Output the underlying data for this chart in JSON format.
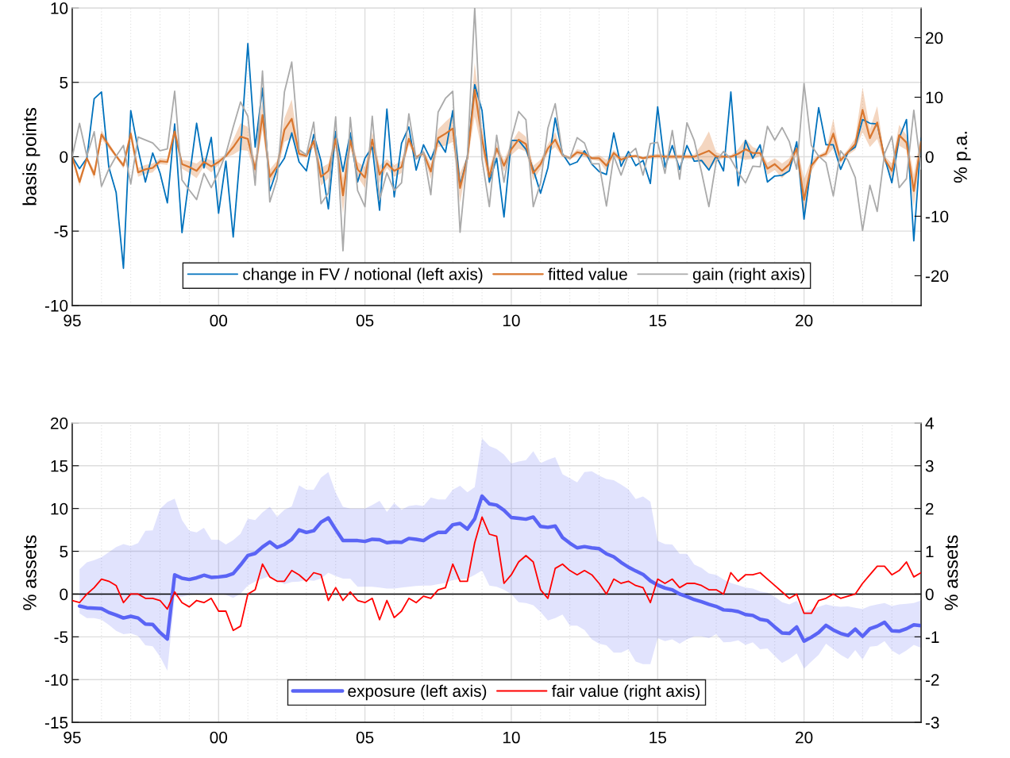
{
  "chart_data": [
    {
      "type": "line",
      "x": [
        1995,
        1995.25,
        1995.5,
        1995.75,
        1996,
        1996.25,
        1996.5,
        1996.75,
        1997,
        1997.25,
        1997.5,
        1997.75,
        1998,
        1998.25,
        1998.5,
        1998.75,
        1999,
        1999.25,
        1999.5,
        1999.75,
        2000,
        2000.25,
        2000.5,
        2000.75,
        2001,
        2001.25,
        2001.5,
        2001.75,
        2002,
        2002.25,
        2002.5,
        2002.75,
        2003,
        2003.25,
        2003.5,
        2003.75,
        2004,
        2004.25,
        2004.5,
        2004.75,
        2005,
        2005.25,
        2005.5,
        2005.75,
        2006,
        2006.25,
        2006.5,
        2006.75,
        2007,
        2007.25,
        2007.5,
        2007.75,
        2008,
        2008.25,
        2008.5,
        2008.75,
        2009,
        2009.25,
        2009.5,
        2009.75,
        2010,
        2010.25,
        2010.5,
        2010.75,
        2011,
        2011.25,
        2011.5,
        2011.75,
        2012,
        2012.25,
        2012.5,
        2012.75,
        2013,
        2013.25,
        2013.5,
        2013.75,
        2014,
        2014.25,
        2014.5,
        2014.75,
        2015,
        2015.25,
        2015.5,
        2015.75,
        2016,
        2016.25,
        2016.5,
        2016.75,
        2017,
        2017.25,
        2017.5,
        2017.75,
        2018,
        2018.25,
        2018.5,
        2018.75,
        2019,
        2019.25,
        2019.5,
        2019.75,
        2020,
        2020.25,
        2020.5,
        2020.75,
        2021,
        2021.25,
        2021.5,
        2021.75,
        2022,
        2022.25,
        2022.5,
        2022.75,
        2023,
        2023.25,
        2023.5,
        2023.75,
        2024
      ],
      "xlim": [
        1995,
        2024
      ],
      "xticks": [
        {
          "value": 1995,
          "label": "95"
        },
        {
          "value": 1996,
          "label": null
        },
        {
          "value": 1997,
          "label": null
        },
        {
          "value": 1998,
          "label": null
        },
        {
          "value": 1999,
          "label": null
        },
        {
          "value": 2000,
          "label": "00"
        },
        {
          "value": 2001,
          "label": null
        },
        {
          "value": 2002,
          "label": null
        },
        {
          "value": 2003,
          "label": null
        },
        {
          "value": 2004,
          "label": null
        },
        {
          "value": 2005,
          "label": "05"
        },
        {
          "value": 2006,
          "label": null
        },
        {
          "value": 2007,
          "label": null
        },
        {
          "value": 2008,
          "label": null
        },
        {
          "value": 2009,
          "label": null
        },
        {
          "value": 2010,
          "label": "10"
        },
        {
          "value": 2011,
          "label": null
        },
        {
          "value": 2012,
          "label": null
        },
        {
          "value": 2013,
          "label": null
        },
        {
          "value": 2014,
          "label": null
        },
        {
          "value": 2015,
          "label": "15"
        },
        {
          "value": 2016,
          "label": null
        },
        {
          "value": 2017,
          "label": null
        },
        {
          "value": 2018,
          "label": null
        },
        {
          "value": 2019,
          "label": null
        },
        {
          "value": 2020,
          "label": "20"
        },
        {
          "value": 2021,
          "label": null
        },
        {
          "value": 2022,
          "label": null
        },
        {
          "value": 2023,
          "label": null
        }
      ],
      "ylim": [
        -10,
        10
      ],
      "yticks": [
        -10,
        -5,
        0,
        5,
        10
      ],
      "y2lim": [
        -25,
        25
      ],
      "y2ticks": [
        -20,
        -10,
        0,
        10,
        20
      ],
      "ylabel": "basis points",
      "y2label": "% p.a.",
      "grid": true,
      "legend": "bottom",
      "series": [
        {
          "name": "change in FV / notional (left axis)",
          "color": "#0072bd",
          "values": [
            0,
            -0.8,
            -0.1,
            3.9,
            4.35,
            -0.7,
            -2.4,
            -7.5,
            3.1,
            0.5,
            -1.7,
            0.25,
            -1.1,
            -3.1,
            2.2,
            -5.1,
            -1.4,
            2.25,
            -0.75,
            1.3,
            -3.8,
            -0.3,
            -5.4,
            0.5,
            7.6,
            0.65,
            4.6,
            -2.3,
            -0.85,
            -0.1,
            1.6,
            -0.35,
            -0.95,
            1.5,
            -0.3,
            -3.5,
            1.7,
            -1.0,
            1.6,
            -1.7,
            -0.1,
            0.65,
            -3.6,
            3.2,
            -2.7,
            0.9,
            2.0,
            -0.9,
            0.8,
            -0.2,
            1.1,
            0.3,
            3.1,
            -1.95,
            0,
            4.85,
            3.1,
            -1.7,
            -0.1,
            -4.05,
            1.1,
            1.1,
            0.5,
            -0.85,
            -2.45,
            -0.75,
            2.6,
            0.2,
            -0.55,
            -0.35,
            0.4,
            -0.5,
            -1.0,
            -1.2,
            1.6,
            -0.65,
            0.35,
            -0.6,
            -0.25,
            -1.8,
            3.35,
            -0.7,
            0.75,
            -0.85,
            0.75,
            -0.3,
            -0.25,
            -0.9,
            0.05,
            -0.95,
            4.35,
            -1.95,
            1.1,
            -0.1,
            0.8,
            -1.7,
            -1.3,
            -1.25,
            -0.95,
            1.0,
            -4.2,
            -0.5,
            3.3,
            0.8,
            0.8,
            -0.85,
            0.3,
            0.65,
            2.5,
            2.25,
            2.2,
            -0.05,
            -1.75,
            1.25,
            2.5,
            -5.65,
            1.25
          ]
        },
        {
          "name": "fitted value",
          "color": "#d9772f",
          "values": [
            0,
            -1.7,
            -0.1,
            -1.2,
            1.5,
            0.75,
            0.05,
            -0.6,
            1.55,
            -1.05,
            -0.85,
            -0.75,
            -0.3,
            -0.35,
            1.7,
            -0.5,
            -0.7,
            -0.95,
            -0.35,
            -0.65,
            -0.35,
            0.05,
            0.65,
            1.35,
            1.2,
            -0.85,
            2.8,
            -1.35,
            -0.65,
            1.8,
            2.55,
            0.2,
            0.05,
            1.05,
            -1.35,
            -0.95,
            1.2,
            -2.6,
            1.1,
            -0.85,
            -1.4,
            1.15,
            -1.2,
            -0.45,
            -0.95,
            -0.7,
            1.2,
            -0.05,
            0.25,
            -1.0,
            1.25,
            1.55,
            1.9,
            -2.1,
            -0.1,
            4.5,
            1.2,
            -1.35,
            0.55,
            -0.6,
            0.5,
            1.15,
            0.85,
            -1.1,
            -0.5,
            0.55,
            1.15,
            0.1,
            -0.1,
            0.3,
            0.2,
            -0.1,
            -0.1,
            -0.6,
            0.25,
            -0.2,
            0,
            0.05,
            -0.1,
            0,
            0.05,
            0,
            0,
            0,
            0,
            0,
            0.2,
            0.4,
            0,
            0,
            0,
            0.2,
            0.5,
            0.25,
            0.25,
            -0.8,
            -0.5,
            -0.95,
            -0.5,
            0.55,
            -2.9,
            -0.6,
            0,
            0.2,
            1.55,
            -0.25,
            0.3,
            0.85,
            3.15,
            1.25,
            2.3,
            -0.15,
            -0.95,
            1.45,
            0.95,
            -2.3,
            1.0
          ],
          "upper": [
            0.1,
            -1.4,
            0,
            -0.9,
            1.8,
            0.95,
            0.15,
            -0.4,
            1.95,
            -0.75,
            -0.55,
            -0.45,
            -0.1,
            -0.15,
            2.1,
            -0.2,
            -0.3,
            -0.45,
            -0.05,
            -0.25,
            -0.15,
            0.15,
            1.15,
            2.25,
            2.0,
            -0.45,
            3.8,
            -0.85,
            -0.25,
            2.6,
            3.85,
            0.4,
            0.15,
            1.45,
            -0.75,
            -0.45,
            1.7,
            -1.4,
            1.6,
            -0.35,
            -0.7,
            1.65,
            -0.6,
            -0.15,
            -0.55,
            -0.3,
            1.6,
            0.05,
            0.45,
            -0.5,
            1.85,
            2.35,
            2.8,
            -1.1,
            0.1,
            6.3,
            2.0,
            -0.75,
            0.85,
            -0.2,
            0.9,
            1.75,
            1.35,
            -0.6,
            -0.2,
            0.85,
            1.65,
            0.2,
            0,
            0.5,
            0.4,
            0,
            0.1,
            -0.2,
            0.45,
            0,
            0.1,
            0.15,
            0,
            0.15,
            0.2,
            0.15,
            0.15,
            0.15,
            0.15,
            0.15,
            0.8,
            1.7,
            0.3,
            0.1,
            0.1,
            0.5,
            1.2,
            0.65,
            0.45,
            -0.4,
            -0.1,
            -0.45,
            -0.1,
            0.95,
            -1.5,
            -0.2,
            0.1,
            0.4,
            2.55,
            -0.05,
            0.5,
            1.25,
            4.65,
            1.85,
            3.4,
            0.05,
            -0.45,
            2.15,
            1.45,
            -1.2,
            1.5
          ],
          "lower": [
            -0.1,
            -2.0,
            -0.2,
            -1.5,
            1.2,
            0.55,
            -0.05,
            -0.8,
            1.15,
            -1.35,
            -1.15,
            -1.05,
            -0.5,
            -0.55,
            1.3,
            -0.8,
            -1.1,
            -1.45,
            -0.65,
            -1.05,
            -0.55,
            -0.05,
            0.15,
            0.45,
            0.4,
            -1.25,
            1.8,
            -1.85,
            -1.05,
            1.0,
            1.25,
            0,
            -0.05,
            0.65,
            -1.95,
            -1.45,
            0.7,
            -3.8,
            0.6,
            -1.35,
            -2.1,
            0.65,
            -1.8,
            -0.75,
            -1.35,
            -1.1,
            0.8,
            -0.15,
            0.05,
            -1.5,
            0.65,
            0.75,
            1.0,
            -3.1,
            -0.3,
            2.7,
            0.4,
            -1.95,
            0.25,
            -1.0,
            0.1,
            0.55,
            0.35,
            -1.6,
            -0.8,
            0.25,
            0.65,
            0,
            -0.2,
            0.1,
            0,
            -0.2,
            -0.3,
            -1.0,
            0.05,
            -0.4,
            -0.1,
            -0.05,
            -0.2,
            -0.15,
            -0.1,
            -0.15,
            -0.15,
            -0.15,
            -0.15,
            -0.15,
            -0.4,
            -0.9,
            -0.3,
            -0.1,
            -0.1,
            -0.1,
            -0.2,
            -0.15,
            0.05,
            -1.2,
            -0.9,
            -1.45,
            -0.9,
            0.15,
            -4.3,
            -1.0,
            -0.1,
            0,
            0.55,
            -0.45,
            0.1,
            0.45,
            1.65,
            0.65,
            1.2,
            -0.35,
            -1.45,
            0.75,
            0.45,
            -3.4,
            0.5
          ]
        },
        {
          "name": "gain (right axis)",
          "color": "#aaaaaa",
          "axis": "y2",
          "values": [
            0,
            5.6,
            0.1,
            4.2,
            -5.0,
            -2.1,
            0.1,
            1.9,
            -4.6,
            3.3,
            2.8,
            2.3,
            1.0,
            1.3,
            11.0,
            -3.9,
            -5.6,
            -7.2,
            -2.8,
            -5.2,
            -2.6,
            0.5,
            5.0,
            9.2,
            6.8,
            -4.8,
            14.4,
            -7.6,
            -3.7,
            10.9,
            15.9,
            1.2,
            0.3,
            5.8,
            -7.9,
            -6.1,
            6.7,
            -15.8,
            6.6,
            -5.7,
            -8.4,
            6.8,
            -7.2,
            -2.7,
            -5.7,
            -4.4,
            7.2,
            -0.4,
            0.8,
            -6.4,
            7.5,
            9.8,
            11.0,
            -12.7,
            0.1,
            25,
            -0.4,
            -8.4,
            3.6,
            -4.3,
            3.0,
            7.6,
            6.2,
            -8.4,
            -4.4,
            4.8,
            8.9,
            0.3,
            -0.3,
            3.2,
            2.3,
            -1.2,
            -1.2,
            -8.3,
            0.1,
            -3.1,
            0.3,
            1.4,
            -3.1,
            2.2,
            2.4,
            -2.8,
            4.4,
            -3.8,
            5.7,
            2.7,
            -2.6,
            -8.4,
            -0.8,
            0.9,
            -0.4,
            -2.6,
            -4.4,
            -1.6,
            -1.7,
            5.1,
            2.8,
            4.9,
            2.5,
            -2.1,
            12.3,
            1.9,
            0.1,
            -1.0,
            -6.6,
            1.0,
            -0.6,
            -3.5,
            -12.4,
            -4.8,
            -9.2,
            0.5,
            3.4,
            -5.2,
            -3.7,
            7.8,
            -2.1
          ]
        }
      ]
    },
    {
      "type": "line",
      "x": [
        1995,
        1995.25,
        1995.5,
        1995.75,
        1996,
        1996.25,
        1996.5,
        1996.75,
        1997,
        1997.25,
        1997.5,
        1997.75,
        1998,
        1998.25,
        1998.5,
        1998.75,
        1999,
        1999.25,
        1999.5,
        1999.75,
        2000,
        2000.25,
        2000.5,
        2000.75,
        2001,
        2001.25,
        2001.5,
        2001.75,
        2002,
        2002.25,
        2002.5,
        2002.75,
        2003,
        2003.25,
        2003.5,
        2003.75,
        2004,
        2004.25,
        2004.5,
        2004.75,
        2005,
        2005.25,
        2005.5,
        2005.75,
        2006,
        2006.25,
        2006.5,
        2006.75,
        2007,
        2007.25,
        2007.5,
        2007.75,
        2008,
        2008.25,
        2008.5,
        2008.75,
        2009,
        2009.25,
        2009.5,
        2009.75,
        2010,
        2010.25,
        2010.5,
        2010.75,
        2011,
        2011.25,
        2011.5,
        2011.75,
        2012,
        2012.25,
        2012.5,
        2012.75,
        2013,
        2013.25,
        2013.5,
        2013.75,
        2014,
        2014.25,
        2014.5,
        2014.75,
        2015,
        2015.25,
        2015.5,
        2015.75,
        2016,
        2016.25,
        2016.5,
        2016.75,
        2017,
        2017.25,
        2017.5,
        2017.75,
        2018,
        2018.25,
        2018.5,
        2018.75,
        2019,
        2019.25,
        2019.5,
        2019.75,
        2020,
        2020.25,
        2020.5,
        2020.75,
        2021,
        2021.25,
        2021.5,
        2021.75,
        2022,
        2022.25,
        2022.5,
        2022.75,
        2023,
        2023.25,
        2023.5,
        2023.75,
        2024
      ],
      "xlim": [
        1995,
        2024
      ],
      "xticks": [
        {
          "value": 1995,
          "label": "95"
        },
        {
          "value": 1996,
          "label": null
        },
        {
          "value": 1997,
          "label": null
        },
        {
          "value": 1998,
          "label": null
        },
        {
          "value": 1999,
          "label": null
        },
        {
          "value": 2000,
          "label": "00"
        },
        {
          "value": 2001,
          "label": null
        },
        {
          "value": 2002,
          "label": null
        },
        {
          "value": 2003,
          "label": null
        },
        {
          "value": 2004,
          "label": null
        },
        {
          "value": 2005,
          "label": "05"
        },
        {
          "value": 2006,
          "label": null
        },
        {
          "value": 2007,
          "label": null
        },
        {
          "value": 2008,
          "label": null
        },
        {
          "value": 2009,
          "label": null
        },
        {
          "value": 2010,
          "label": "10"
        },
        {
          "value": 2011,
          "label": null
        },
        {
          "value": 2012,
          "label": null
        },
        {
          "value": 2013,
          "label": null
        },
        {
          "value": 2014,
          "label": null
        },
        {
          "value": 2015,
          "label": "15"
        },
        {
          "value": 2016,
          "label": null
        },
        {
          "value": 2017,
          "label": null
        },
        {
          "value": 2018,
          "label": null
        },
        {
          "value": 2019,
          "label": null
        },
        {
          "value": 2020,
          "label": "20"
        },
        {
          "value": 2021,
          "label": null
        },
        {
          "value": 2022,
          "label": null
        },
        {
          "value": 2023,
          "label": null
        }
      ],
      "ylim": [
        -15,
        20
      ],
      "yticks": [
        -15,
        -10,
        -5,
        0,
        5,
        10,
        15,
        20
      ],
      "y2lim": [
        -3,
        4
      ],
      "y2ticks": [
        -3,
        -2,
        -1,
        0,
        1,
        2,
        3,
        4
      ],
      "ylabel": "% assets",
      "y2label": "% assets",
      "grid": true,
      "legend": "bottom",
      "ref_lines": [
        {
          "axis": "y",
          "value": 0,
          "color": "#000000"
        }
      ],
      "series": [
        {
          "name": "exposure (left axis)",
          "color": "#5a64f5",
          "values": [
            null,
            -1.4,
            -1.6,
            -1.65,
            -1.7,
            -2.15,
            -2.45,
            -2.8,
            -2.6,
            -2.8,
            -3.5,
            -3.55,
            -4.5,
            -5.25,
            2.25,
            1.85,
            1.7,
            1.9,
            2.2,
            1.95,
            2.0,
            2.1,
            2.4,
            3.4,
            4.5,
            4.75,
            5.5,
            6.1,
            5.45,
            5.8,
            6.4,
            7.5,
            7.2,
            7.4,
            8.4,
            8.9,
            7.55,
            6.25,
            6.25,
            6.25,
            6.15,
            6.4,
            6.35,
            6.0,
            6.1,
            6.05,
            6.5,
            6.4,
            6.25,
            6.8,
            7.2,
            7.2,
            8.1,
            8.25,
            7.6,
            8.8,
            11.45,
            10.55,
            10.4,
            9.8,
            8.95,
            8.85,
            8.75,
            9.0,
            7.9,
            7.8,
            7.95,
            6.6,
            5.95,
            5.4,
            5.55,
            5.4,
            5.3,
            4.7,
            4.35,
            3.7,
            3.15,
            2.7,
            2.3,
            1.55,
            1.05,
            0.7,
            0.5,
            0,
            -0.3,
            -0.65,
            -0.9,
            -1.2,
            -1.45,
            -1.85,
            -1.9,
            -2.05,
            -2.4,
            -2.5,
            -2.95,
            -3.1,
            -3.85,
            -4.55,
            -4.6,
            -3.85,
            -5.5,
            -5.05,
            -4.5,
            -3.65,
            -4.2,
            -4.6,
            -4.85,
            -4.1,
            -4.95,
            -4.05,
            -3.75,
            -3.3,
            -4.3,
            -4.35,
            -4.05,
            -3.6,
            -3.7
          ],
          "upper": [
            null,
            2.9,
            3.7,
            3.95,
            4.3,
            4.9,
            5.5,
            5.85,
            5.6,
            5.95,
            7.4,
            7.45,
            9.95,
            10.75,
            11.15,
            8.65,
            7.4,
            7.2,
            7.75,
            6.35,
            6.35,
            5.8,
            6.3,
            7.05,
            8.8,
            8.65,
            9.55,
            10.2,
            9.05,
            9.85,
            10.25,
            12.7,
            12.2,
            12.2,
            13.6,
            14.25,
            11.85,
            10.2,
            10.0,
            10.0,
            10.0,
            10.4,
            10.9,
            9.6,
            10.65,
            9.85,
            10.3,
            10.4,
            10.3,
            11.3,
            11.05,
            11.05,
            12.2,
            12.65,
            11.9,
            12.5,
            18.2,
            17.3,
            16.95,
            16.3,
            15.25,
            15.5,
            15.65,
            16.7,
            15.3,
            15.7,
            16.0,
            14.0,
            13.55,
            13.05,
            14.25,
            14.35,
            13.85,
            13.45,
            13.3,
            12.8,
            12.25,
            11.1,
            11.4,
            10.8,
            6.2,
            5.85,
            5.8,
            4.7,
            4.7,
            3.45,
            3.05,
            2.4,
            2.25,
            1.7,
            1.3,
            1.05,
            0.75,
            0.65,
            0.3,
            0.15,
            -0.3,
            -0.95,
            -1.2,
            -0.8,
            -2.1,
            -1.75,
            -1.5,
            -1.2,
            -1.4,
            -1.5,
            -1.45,
            -1.6,
            -1.75,
            -1.4,
            -1.2,
            -1.05,
            -1.4,
            -1.2,
            -1.15,
            -1.05,
            -0.75
          ],
          "lower": [
            null,
            -2.25,
            -2.8,
            -2.8,
            -3.0,
            -3.6,
            -4.3,
            -4.7,
            -4.6,
            -4.9,
            -6.0,
            -6.1,
            -7.3,
            -8.95,
            -0.3,
            -0.3,
            -0.1,
            0,
            0.05,
            0,
            0.05,
            -0.1,
            -0.45,
            0.05,
            1.0,
            1.45,
            1.8,
            2.1,
            1.65,
            1.15,
            1.4,
            1.45,
            1.65,
            1.55,
            1.8,
            2.5,
            2.1,
            1.8,
            1.8,
            0.85,
            0.85,
            0.85,
            0.75,
            0.65,
            0.65,
            0.75,
            0.85,
            0.95,
            1.0,
            1.0,
            1.15,
            1.3,
            1.65,
            1.7,
            1.8,
            2.25,
            2.75,
            1.0,
            0.85,
            0.5,
            0,
            -0.95,
            -1.05,
            -1.3,
            -2.1,
            -3.1,
            -2.8,
            -2.4,
            -3.7,
            -3.7,
            -4.2,
            -5.3,
            -5.8,
            -6.0,
            -6.85,
            -6.85,
            -6.45,
            -7.9,
            -8.2,
            -8.2,
            -5.15,
            -5.5,
            -5.3,
            -5.8,
            -5.3,
            -4.95,
            -4.95,
            -5.15,
            -4.7,
            -5.65,
            -5.6,
            -5.4,
            -5.95,
            -5.65,
            -6.45,
            -6.35,
            -7.25,
            -8.05,
            -7.6,
            -6.95,
            -8.7,
            -7.9,
            -7.1,
            -5.8,
            -6.45,
            -7.1,
            -7.6,
            -6.55,
            -7.65,
            -6.15,
            -6.05,
            -5.5,
            -6.6,
            -7.1,
            -6.6,
            -5.95,
            -6.3
          ]
        },
        {
          "name": "fair value (right axis)",
          "color": "#ff0000",
          "axis": "y2",
          "values": [
            -0.15,
            -0.2,
            0,
            0.15,
            0.35,
            0.3,
            0.2,
            -0.2,
            0,
            0,
            -0.1,
            -0.1,
            -0.15,
            -0.35,
            0.05,
            -0.2,
            -0.3,
            -0.15,
            -0.2,
            -0.1,
            -0.4,
            -0.4,
            -0.85,
            -0.75,
            0,
            0.1,
            0.7,
            0.4,
            0.3,
            0.3,
            0.55,
            0.45,
            0.3,
            0.5,
            0.45,
            -0.15,
            0.15,
            -0.15,
            0.05,
            -0.15,
            -0.2,
            -0.1,
            -0.6,
            -0.15,
            -0.55,
            -0.4,
            -0.1,
            -0.2,
            -0.05,
            -0.1,
            0.1,
            0.15,
            0.7,
            0.3,
            0.3,
            1.2,
            1.8,
            1.4,
            1.35,
            0.25,
            0.45,
            0.75,
            0.9,
            0.75,
            0.1,
            -0.1,
            0.6,
            0.7,
            0.55,
            0.45,
            0.55,
            0.45,
            0.25,
            0,
            0.35,
            0.25,
            0.3,
            0.2,
            0.15,
            -0.2,
            0.35,
            0.25,
            0.35,
            0.15,
            0.25,
            0.25,
            0.2,
            0.1,
            0.1,
            0,
            0.5,
            0.3,
            0.45,
            0.45,
            0.5,
            0.35,
            0.2,
            0.05,
            -0.1,
            0,
            -0.45,
            -0.45,
            -0.15,
            -0.1,
            0,
            -0.1,
            -0.05,
            0,
            0.25,
            0.45,
            0.65,
            0.65,
            0.45,
            0.55,
            0.75,
            0.4,
            0.5
          ]
        }
      ]
    }
  ]
}
